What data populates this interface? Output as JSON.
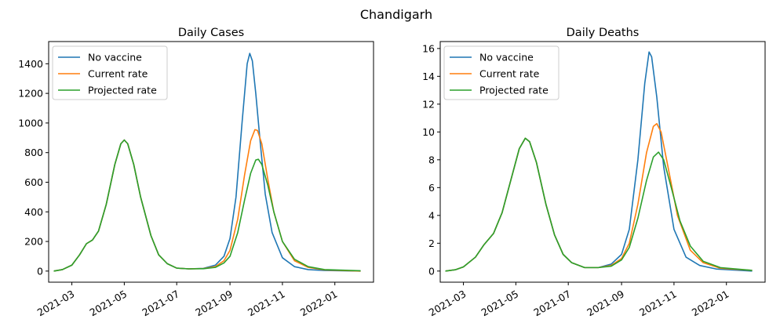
{
  "figure": {
    "suptitle": "Chandigarh"
  },
  "chart_data": [
    {
      "type": "line",
      "title": "Daily Cases",
      "xlabel": "",
      "ylabel": "",
      "xlim": [
        "2021-02-02",
        "2022-02-15"
      ],
      "ylim": [
        -75,
        1550
      ],
      "x_ticks": [
        "2021-03-01",
        "2021-05-01",
        "2021-07-01",
        "2021-09-01",
        "2021-11-01",
        "2022-01-01"
      ],
      "x_tick_labels": [
        "2021-03",
        "2021-05",
        "2021-07",
        "2021-09",
        "2021-11",
        "2022-01"
      ],
      "y_ticks": [
        0,
        200,
        400,
        600,
        800,
        1000,
        1200,
        1400
      ],
      "y_tick_labels": [
        "0",
        "200",
        "400",
        "600",
        "800",
        "1000",
        "1200",
        "1400"
      ],
      "grid": false,
      "legend": "top-left",
      "series": [
        {
          "name": "No vaccine",
          "color": "#1f77b4",
          "points": [
            [
              "2021-02-08",
              0
            ],
            [
              "2021-02-18",
              10
            ],
            [
              "2021-03-01",
              40
            ],
            [
              "2021-03-10",
              110
            ],
            [
              "2021-03-18",
              185
            ],
            [
              "2021-03-25",
              210
            ],
            [
              "2021-04-01",
              270
            ],
            [
              "2021-04-10",
              450
            ],
            [
              "2021-04-20",
              720
            ],
            [
              "2021-04-27",
              860
            ],
            [
              "2021-05-01",
              885
            ],
            [
              "2021-05-05",
              860
            ],
            [
              "2021-05-12",
              720
            ],
            [
              "2021-05-20",
              500
            ],
            [
              "2021-06-01",
              240
            ],
            [
              "2021-06-10",
              110
            ],
            [
              "2021-06-20",
              50
            ],
            [
              "2021-07-01",
              20
            ],
            [
              "2021-07-15",
              15
            ],
            [
              "2021-08-01",
              18
            ],
            [
              "2021-08-15",
              40
            ],
            [
              "2021-08-25",
              100
            ],
            [
              "2021-09-01",
              220
            ],
            [
              "2021-09-08",
              500
            ],
            [
              "2021-09-15",
              1000
            ],
            [
              "2021-09-21",
              1400
            ],
            [
              "2021-09-24",
              1470
            ],
            [
              "2021-09-27",
              1420
            ],
            [
              "2021-10-01",
              1200
            ],
            [
              "2021-10-06",
              880
            ],
            [
              "2021-10-12",
              520
            ],
            [
              "2021-10-20",
              260
            ],
            [
              "2021-11-01",
              90
            ],
            [
              "2021-11-15",
              30
            ],
            [
              "2021-12-01",
              10
            ],
            [
              "2021-12-20",
              4
            ],
            [
              "2022-01-31",
              0
            ]
          ]
        },
        {
          "name": "Current rate",
          "color": "#ff7f0e",
          "points": [
            [
              "2021-02-08",
              0
            ],
            [
              "2021-02-18",
              10
            ],
            [
              "2021-03-01",
              40
            ],
            [
              "2021-03-10",
              110
            ],
            [
              "2021-03-18",
              185
            ],
            [
              "2021-03-25",
              210
            ],
            [
              "2021-04-01",
              270
            ],
            [
              "2021-04-10",
              450
            ],
            [
              "2021-04-20",
              720
            ],
            [
              "2021-04-27",
              860
            ],
            [
              "2021-05-01",
              885
            ],
            [
              "2021-05-05",
              860
            ],
            [
              "2021-05-12",
              720
            ],
            [
              "2021-05-20",
              500
            ],
            [
              "2021-06-01",
              240
            ],
            [
              "2021-06-10",
              110
            ],
            [
              "2021-06-20",
              50
            ],
            [
              "2021-07-01",
              20
            ],
            [
              "2021-07-15",
              15
            ],
            [
              "2021-08-01",
              17
            ],
            [
              "2021-08-15",
              30
            ],
            [
              "2021-08-25",
              70
            ],
            [
              "2021-09-01",
              140
            ],
            [
              "2021-09-10",
              350
            ],
            [
              "2021-09-18",
              650
            ],
            [
              "2021-09-25",
              880
            ],
            [
              "2021-09-30",
              955
            ],
            [
              "2021-10-03",
              950
            ],
            [
              "2021-10-08",
              860
            ],
            [
              "2021-10-15",
              620
            ],
            [
              "2021-10-22",
              400
            ],
            [
              "2021-11-01",
              200
            ],
            [
              "2021-11-15",
              70
            ],
            [
              "2021-12-01",
              25
            ],
            [
              "2021-12-20",
              8
            ],
            [
              "2022-01-31",
              0
            ]
          ]
        },
        {
          "name": "Projected rate",
          "color": "#2ca02c",
          "points": [
            [
              "2021-02-08",
              0
            ],
            [
              "2021-02-18",
              10
            ],
            [
              "2021-03-01",
              40
            ],
            [
              "2021-03-10",
              110
            ],
            [
              "2021-03-18",
              185
            ],
            [
              "2021-03-25",
              210
            ],
            [
              "2021-04-01",
              270
            ],
            [
              "2021-04-10",
              450
            ],
            [
              "2021-04-20",
              720
            ],
            [
              "2021-04-27",
              860
            ],
            [
              "2021-05-01",
              885
            ],
            [
              "2021-05-05",
              860
            ],
            [
              "2021-05-12",
              720
            ],
            [
              "2021-05-20",
              500
            ],
            [
              "2021-06-01",
              240
            ],
            [
              "2021-06-10",
              110
            ],
            [
              "2021-06-20",
              50
            ],
            [
              "2021-07-01",
              20
            ],
            [
              "2021-07-15",
              15
            ],
            [
              "2021-08-01",
              16
            ],
            [
              "2021-08-15",
              25
            ],
            [
              "2021-08-25",
              55
            ],
            [
              "2021-09-01",
              100
            ],
            [
              "2021-09-10",
              260
            ],
            [
              "2021-09-18",
              480
            ],
            [
              "2021-09-25",
              660
            ],
            [
              "2021-10-01",
              750
            ],
            [
              "2021-10-04",
              755
            ],
            [
              "2021-10-08",
              720
            ],
            [
              "2021-10-15",
              580
            ],
            [
              "2021-10-22",
              400
            ],
            [
              "2021-11-01",
              200
            ],
            [
              "2021-11-15",
              80
            ],
            [
              "2021-12-01",
              30
            ],
            [
              "2021-12-20",
              10
            ],
            [
              "2022-01-31",
              2
            ]
          ]
        }
      ]
    },
    {
      "type": "line",
      "title": "Daily Deaths",
      "xlabel": "",
      "ylabel": "",
      "xlim": [
        "2021-02-02",
        "2022-02-15"
      ],
      "ylim": [
        -0.8,
        16.5
      ],
      "x_ticks": [
        "2021-03-01",
        "2021-05-01",
        "2021-07-01",
        "2021-09-01",
        "2021-11-01",
        "2022-01-01"
      ],
      "x_tick_labels": [
        "2021-03",
        "2021-05",
        "2021-07",
        "2021-09",
        "2021-11",
        "2022-01"
      ],
      "y_ticks": [
        0,
        2,
        4,
        6,
        8,
        10,
        12,
        14,
        16
      ],
      "y_tick_labels": [
        "0",
        "2",
        "4",
        "6",
        "8",
        "10",
        "12",
        "14",
        "16"
      ],
      "grid": false,
      "legend": "top-left",
      "series": [
        {
          "name": "No vaccine",
          "color": "#1f77b4",
          "points": [
            [
              "2021-02-08",
              0
            ],
            [
              "2021-02-20",
              0.1
            ],
            [
              "2021-03-01",
              0.3
            ],
            [
              "2021-03-15",
              1.0
            ],
            [
              "2021-03-25",
              1.9
            ],
            [
              "2021-04-05",
              2.7
            ],
            [
              "2021-04-15",
              4.2
            ],
            [
              "2021-04-25",
              6.5
            ],
            [
              "2021-05-05",
              8.8
            ],
            [
              "2021-05-12",
              9.55
            ],
            [
              "2021-05-17",
              9.3
            ],
            [
              "2021-05-25",
              7.8
            ],
            [
              "2021-06-05",
              4.8
            ],
            [
              "2021-06-15",
              2.6
            ],
            [
              "2021-06-25",
              1.2
            ],
            [
              "2021-07-05",
              0.6
            ],
            [
              "2021-07-20",
              0.25
            ],
            [
              "2021-08-05",
              0.25
            ],
            [
              "2021-08-20",
              0.5
            ],
            [
              "2021-09-01",
              1.2
            ],
            [
              "2021-09-10",
              3.0
            ],
            [
              "2021-09-20",
              8.0
            ],
            [
              "2021-09-28",
              13.5
            ],
            [
              "2021-10-03",
              15.75
            ],
            [
              "2021-10-06",
              15.4
            ],
            [
              "2021-10-12",
              12.5
            ],
            [
              "2021-10-20",
              7.5
            ],
            [
              "2021-11-01",
              3.0
            ],
            [
              "2021-11-15",
              1.0
            ],
            [
              "2021-12-01",
              0.4
            ],
            [
              "2021-12-20",
              0.15
            ],
            [
              "2022-01-31",
              0
            ]
          ]
        },
        {
          "name": "Current rate",
          "color": "#ff7f0e",
          "points": [
            [
              "2021-02-08",
              0
            ],
            [
              "2021-02-20",
              0.1
            ],
            [
              "2021-03-01",
              0.3
            ],
            [
              "2021-03-15",
              1.0
            ],
            [
              "2021-03-25",
              1.9
            ],
            [
              "2021-04-05",
              2.7
            ],
            [
              "2021-04-15",
              4.2
            ],
            [
              "2021-04-25",
              6.5
            ],
            [
              "2021-05-05",
              8.8
            ],
            [
              "2021-05-12",
              9.55
            ],
            [
              "2021-05-17",
              9.3
            ],
            [
              "2021-05-25",
              7.8
            ],
            [
              "2021-06-05",
              4.8
            ],
            [
              "2021-06-15",
              2.6
            ],
            [
              "2021-06-25",
              1.2
            ],
            [
              "2021-07-05",
              0.6
            ],
            [
              "2021-07-20",
              0.25
            ],
            [
              "2021-08-05",
              0.25
            ],
            [
              "2021-08-20",
              0.4
            ],
            [
              "2021-09-01",
              0.9
            ],
            [
              "2021-09-10",
              2.0
            ],
            [
              "2021-09-20",
              4.8
            ],
            [
              "2021-09-30",
              8.5
            ],
            [
              "2021-10-08",
              10.4
            ],
            [
              "2021-10-12",
              10.6
            ],
            [
              "2021-10-17",
              10.0
            ],
            [
              "2021-10-25",
              7.5
            ],
            [
              "2021-11-05",
              4.0
            ],
            [
              "2021-11-20",
              1.5
            ],
            [
              "2021-12-05",
              0.6
            ],
            [
              "2021-12-25",
              0.2
            ],
            [
              "2022-01-31",
              0.05
            ]
          ]
        },
        {
          "name": "Projected rate",
          "color": "#2ca02c",
          "points": [
            [
              "2021-02-08",
              0
            ],
            [
              "2021-02-20",
              0.1
            ],
            [
              "2021-03-01",
              0.3
            ],
            [
              "2021-03-15",
              1.0
            ],
            [
              "2021-03-25",
              1.9
            ],
            [
              "2021-04-05",
              2.7
            ],
            [
              "2021-04-15",
              4.2
            ],
            [
              "2021-04-25",
              6.5
            ],
            [
              "2021-05-05",
              8.8
            ],
            [
              "2021-05-12",
              9.55
            ],
            [
              "2021-05-17",
              9.3
            ],
            [
              "2021-05-25",
              7.8
            ],
            [
              "2021-06-05",
              4.8
            ],
            [
              "2021-06-15",
              2.6
            ],
            [
              "2021-06-25",
              1.2
            ],
            [
              "2021-07-05",
              0.6
            ],
            [
              "2021-07-20",
              0.25
            ],
            [
              "2021-08-05",
              0.25
            ],
            [
              "2021-08-20",
              0.35
            ],
            [
              "2021-09-01",
              0.8
            ],
            [
              "2021-09-10",
              1.7
            ],
            [
              "2021-09-20",
              3.8
            ],
            [
              "2021-09-30",
              6.5
            ],
            [
              "2021-10-08",
              8.2
            ],
            [
              "2021-10-14",
              8.55
            ],
            [
              "2021-10-20",
              8.0
            ],
            [
              "2021-10-28",
              6.2
            ],
            [
              "2021-11-08",
              3.6
            ],
            [
              "2021-11-20",
              1.8
            ],
            [
              "2021-12-05",
              0.7
            ],
            [
              "2021-12-25",
              0.25
            ],
            [
              "2022-01-31",
              0.05
            ]
          ]
        }
      ]
    }
  ]
}
